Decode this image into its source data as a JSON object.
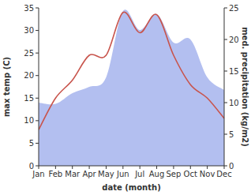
{
  "chart_data": {
    "type": "line",
    "xlabel": "date (month)",
    "ylabel": "max temp (C)",
    "y2label": "med. precipitation (kg/m2)",
    "categories": [
      "Jan",
      "Feb",
      "Mar",
      "Apr",
      "May",
      "Jun",
      "Jul",
      "Aug",
      "Sep",
      "Oct",
      "Nov",
      "Dec"
    ],
    "series": [
      {
        "type": "area",
        "axis": "y2",
        "color": "#b3bff0",
        "values": [
          10,
          9.8,
          11.5,
          12.5,
          14,
          24.5,
          21.5,
          24,
          19.5,
          20,
          14,
          12
        ]
      },
      {
        "type": "line",
        "color": "#c8544c",
        "values": [
          8,
          15,
          19,
          24.5,
          24.5,
          34,
          29.5,
          33.5,
          24.5,
          18,
          15,
          10.5
        ]
      }
    ],
    "ylim": [
      0,
      35
    ],
    "yticks": [
      0,
      5,
      10,
      15,
      20,
      25,
      30,
      35
    ],
    "y2lim": [
      0,
      25
    ],
    "y2ticks": [
      0,
      5,
      10,
      15,
      20,
      25
    ],
    "grid": false
  }
}
